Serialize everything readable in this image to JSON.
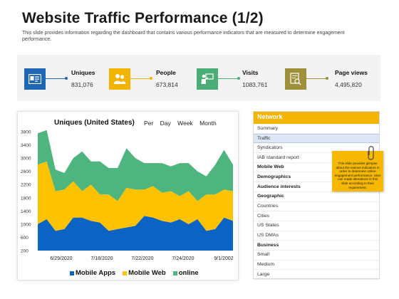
{
  "header": {
    "title": "Website Traffic Performance (1/2)",
    "subtitle": "This slide provides information regarding the dashboard that contains various performance indicators that are measured to determine engagement performance."
  },
  "kpis": [
    {
      "label": "Uniques",
      "value": "831,076",
      "icon": "contact-card-icon",
      "color": "#1f67b4"
    },
    {
      "label": "People",
      "value": "673,814",
      "icon": "people-icon",
      "color": "#f2b400"
    },
    {
      "label": "Visits",
      "value": "1083,761",
      "icon": "presenter-icon",
      "color": "#4dad78"
    },
    {
      "label": "Page views",
      "value": "4,495,820",
      "icon": "document-search-icon",
      "color": "#9e8f3a"
    }
  ],
  "chart_tabs": [
    "Per",
    "Day",
    "Week",
    "Month"
  ],
  "chart_data": {
    "type": "area",
    "title": "Uniques (United States)",
    "stacked": true,
    "ylim": [
      200,
      3800
    ],
    "y_ticks": [
      200,
      600,
      1000,
      1400,
      1800,
      2200,
      2600,
      3000,
      3400,
      3800
    ],
    "x_tick_labels": [
      "6/29/2020",
      "7/18/2020",
      "7/22/2020",
      "7/24/2020",
      "9/1/2002"
    ],
    "legend_position": "bottom",
    "series": [
      {
        "name": "Mobile Apps",
        "color": "#0b63c4",
        "values": [
          800,
          950,
          600,
          650,
          1000,
          1000,
          900,
          850,
          600,
          650,
          700,
          750,
          1050,
          1000,
          900,
          850,
          950,
          800,
          950,
          600,
          650,
          1000,
          900
        ]
      },
      {
        "name": "Mobile Web",
        "color": "#fcc200",
        "values": [
          1800,
          1750,
          1200,
          1200,
          1100,
          800,
          1100,
          850,
          1100,
          850,
          1200,
          1100,
          800,
          950,
          850,
          950,
          700,
          1000,
          550,
          1100,
          1050,
          850,
          900
        ]
      },
      {
        "name": "online",
        "color": "#4fb57f",
        "values": [
          950,
          950,
          650,
          500,
          700,
          1200,
          700,
          1000,
          800,
          1000,
          1200,
          950,
          800,
          700,
          900,
          750,
          1000,
          850,
          900,
          550,
          900,
          1200,
          800
        ]
      }
    ]
  },
  "network": {
    "header": "Network",
    "rows": [
      {
        "label": "Summary",
        "bold": false,
        "selected": false
      },
      {
        "label": "Traffic",
        "bold": false,
        "selected": true
      },
      {
        "label": "Syndicators",
        "bold": false,
        "selected": false
      },
      {
        "label": "IAB standard report",
        "bold": false,
        "selected": false
      },
      {
        "label": "Mobile Web",
        "bold": true,
        "selected": false
      },
      {
        "label": "Demographics",
        "bold": true,
        "selected": false
      },
      {
        "label": "Audience interests",
        "bold": true,
        "selected": false
      },
      {
        "label": "Geographic",
        "bold": true,
        "selected": false
      },
      {
        "label": "Countries",
        "bold": false,
        "selected": false
      },
      {
        "label": "Cities",
        "bold": false,
        "selected": false
      },
      {
        "label": "US States",
        "bold": false,
        "selected": false
      },
      {
        "label": "US DMAs",
        "bold": false,
        "selected": false
      },
      {
        "label": "Business",
        "bold": true,
        "selected": false
      },
      {
        "label": "Small",
        "bold": false,
        "selected": false
      },
      {
        "label": "Medium",
        "bold": false,
        "selected": false
      },
      {
        "label": "Large",
        "bold": false,
        "selected": false
      }
    ]
  },
  "note": {
    "text": "This slide provides glimpse about the various indicators in order to determine online engagement performance. User can made alterations in this slide according to their requirement."
  }
}
